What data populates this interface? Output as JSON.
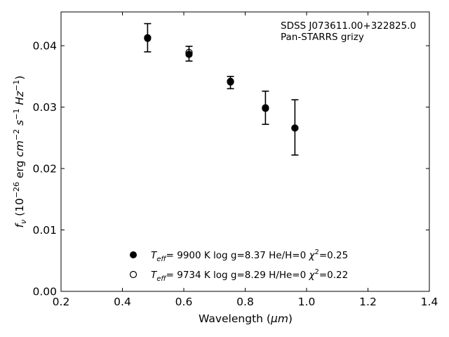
{
  "chart_data": {
    "type": "scatter",
    "xlabel_text": "Wavelength (",
    "xlabel_unit": "μm",
    "xlabel_close": ")",
    "ylabel_parts": {
      "f": "f",
      "nu": "ν",
      "open": " (10",
      "exp1": "−26",
      "erg": " erg ",
      "cm": "cm",
      "exp2": "−2",
      "s": " s",
      "exp3": "−1",
      "hz": " Hz",
      "exp4": "−1",
      "close": ")"
    },
    "xlim": [
      0.2,
      1.4
    ],
    "ylim": [
      0.0,
      0.0455
    ],
    "xticks": [
      0.2,
      0.4,
      0.6,
      0.8,
      1.0,
      1.2,
      1.4
    ],
    "xtick_labels": [
      "0.2",
      "0.4",
      "0.6",
      "0.8",
      "1.0",
      "1.2",
      "1.4"
    ],
    "yticks": [
      0.0,
      0.01,
      0.02,
      0.03,
      0.04
    ],
    "ytick_labels": [
      "0.00",
      "0.01",
      "0.02",
      "0.03",
      "0.04"
    ],
    "annotation_line1": "SDSS J073611.00+322825.0",
    "annotation_line2": "Pan-STARRS grizy",
    "observed": {
      "x": [
        0.482,
        0.617,
        0.752,
        0.866,
        0.962
      ],
      "y": [
        0.0413,
        0.0387,
        0.034,
        0.0299,
        0.0267
      ],
      "yerr": [
        0.0023,
        0.0012,
        0.001,
        0.0027,
        0.0045
      ],
      "color": "#000000"
    },
    "series": [
      {
        "marker": "filled",
        "x": [
          0.482,
          0.617,
          0.752,
          0.866,
          0.962
        ],
        "y": [
          0.0413,
          0.0386,
          0.0341,
          0.0299,
          0.0266
        ],
        "legend": {
          "teff": "T",
          "teff_sub": "eff",
          "body": "=  9900 K  log g=8.37  He/H=0  ",
          "chi": "χ",
          "chi_exp": "2",
          "chi_val": "=0.25"
        }
      },
      {
        "marker": "open",
        "x": [
          0.482,
          0.617,
          0.752,
          0.866,
          0.962
        ],
        "y": [
          0.0412,
          0.0389,
          0.0342,
          0.0298,
          0.0266
        ],
        "legend": {
          "teff": "T",
          "teff_sub": "eff",
          "body": "=  9734 K  log g=8.29  H/He=0  ",
          "chi": "χ",
          "chi_exp": "2",
          "chi_val": "=0.22"
        }
      }
    ],
    "grid": false,
    "legend_position": "lower-center"
  }
}
